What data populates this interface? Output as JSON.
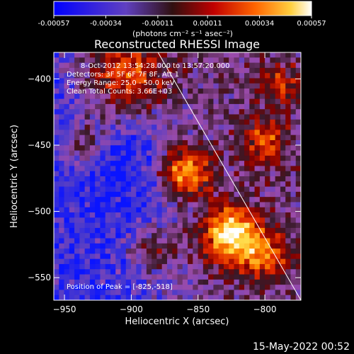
{
  "colorbar": {
    "tick_labels": [
      "-0.00057",
      "-0.00034",
      "-0.00011",
      "0.00011",
      "0.00034",
      "0.00057"
    ],
    "unit_label": "(photons cm⁻² s⁻¹ asec⁻²)",
    "range": [
      -0.00057,
      0.00057
    ]
  },
  "chart_data": {
    "type": "heatmap",
    "title": "Reconstructed RHESSI Image",
    "xlabel": "Heliocentric X (arcsec)",
    "ylabel": "Heliocentric Y (arcsec)",
    "xlim": [
      -958,
      -773
    ],
    "ylim": [
      -567,
      -380
    ],
    "xticks": [
      -950,
      -900,
      -850,
      -800
    ],
    "xtick_labels": [
      "−950",
      "−900",
      "−850",
      "−800"
    ],
    "yticks": [
      -400,
      -450,
      -500,
      -550
    ],
    "ytick_labels": [
      "−400",
      "−450",
      "−500",
      "−550"
    ],
    "info_lines": [
      "8-Oct-2012 13:54:28.000 to 13:57:20.000",
      "Detectors: 3F 5F 6F 7F 8F, Att 1",
      "Energy Range: 25.0 - 50.0 keV",
      "Clean    Total Counts: 3.66E+03"
    ],
    "peak_label": "Position of Peak = [-825,-518]",
    "peak": [
      -825,
      -518
    ],
    "limb_line": [
      [
        -880,
        -380
      ],
      [
        -773,
        -567
      ]
    ],
    "grid": false,
    "colormap": [
      "#0000ff",
      "#5a3cbd",
      "#a050a0",
      "#3c1e1e",
      "#8c0000",
      "#e63200",
      "#ff9600",
      "#ffe650",
      "#ffffff"
    ]
  },
  "timestamp": "15-May-2022 00:52"
}
